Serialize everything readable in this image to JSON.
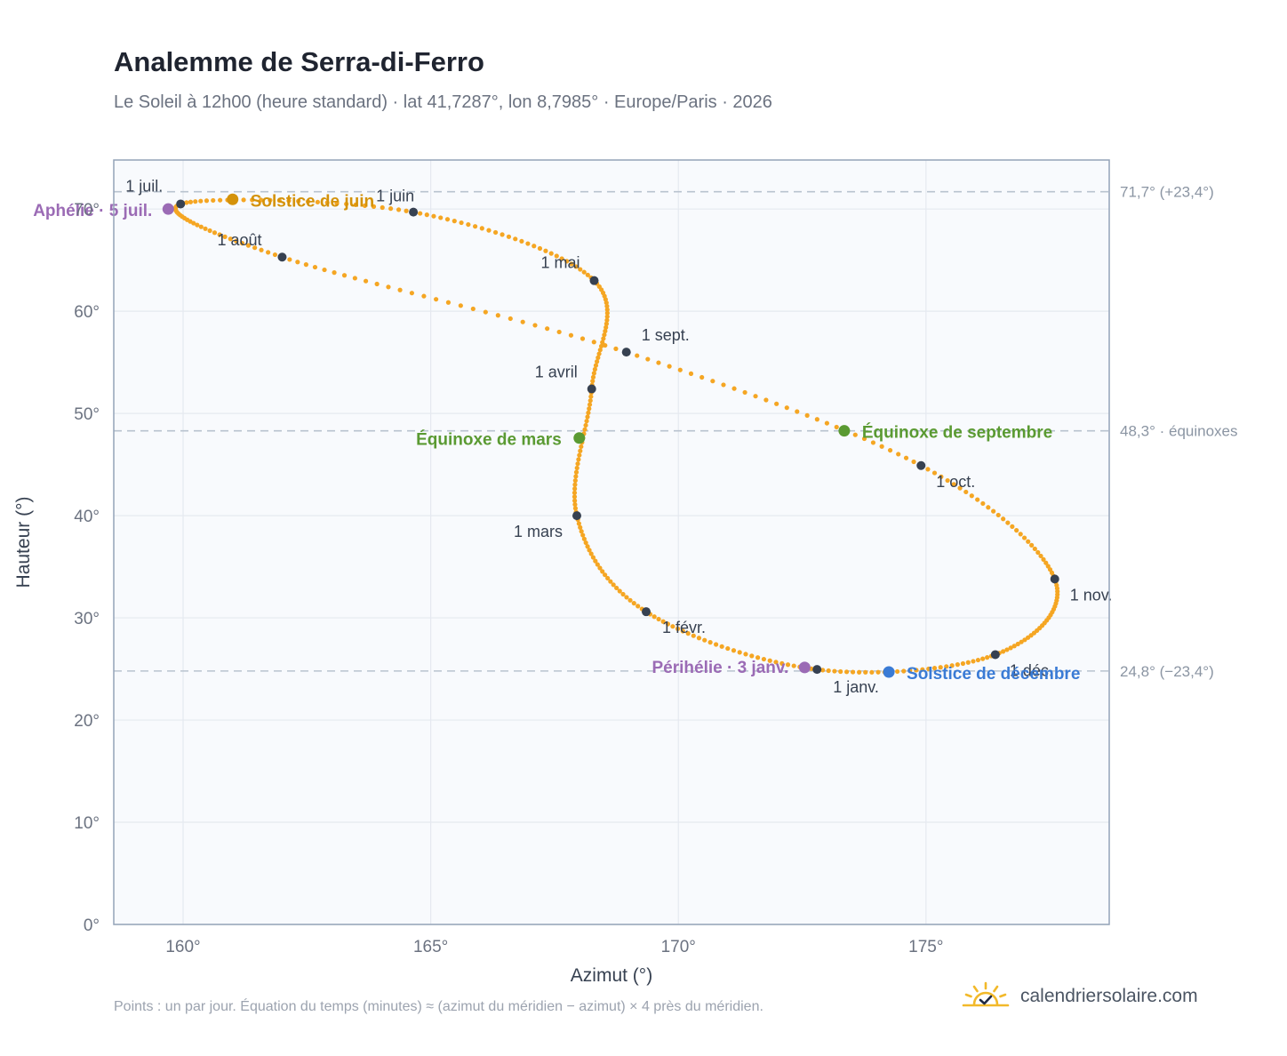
{
  "title": "Analemme de Serra-di-Ferro",
  "subtitle": "Le Soleil à 12h00 (heure standard) · lat 41,7287°, lon 8,7985° · Europe/Paris · 2026",
  "footnote": "Points : un par jour. Équation du temps (minutes) ≈ (azimut du méridien − azimut) × 4 près du méridien.",
  "brand": {
    "name": "calendriersolaire.com",
    "logo_icon": "sun-check-icon"
  },
  "colors": {
    "curve": "#f5a623",
    "month_marker": "#374151",
    "solstice_june": "#d4920a",
    "solstice_december": "#3a7bd5",
    "equinox": "#5a9a32",
    "apsis": "#9b6bb5",
    "reference_line": "#b9c3cf",
    "plot_background": "#f8fafd",
    "plot_border": "#94a3b8",
    "grid": "#e5e9f0"
  },
  "chart_data": {
    "type": "scatter",
    "title": "Analemme de Serra-di-Ferro",
    "xlabel": "Azimut (°)",
    "ylabel": "Hauteur (°)",
    "xlim": [
      158.6,
      178.7
    ],
    "ylim": [
      0,
      74.8
    ],
    "xticks": [
      160,
      165,
      170,
      175
    ],
    "yticks": [
      0,
      10,
      20,
      30,
      40,
      50,
      60,
      70
    ],
    "tick_labels": {
      "x": [
        "160°",
        "165°",
        "170°",
        "175°"
      ],
      "y": [
        "0°",
        "10°",
        "20°",
        "30°",
        "40°",
        "50°",
        "60°",
        "70°"
      ]
    },
    "grid": true,
    "curve_points": [
      {
        "label": "1 janv.",
        "x": 172.8,
        "y": 24.95
      },
      {
        "label": "1 févr.",
        "x": 169.35,
        "y": 30.6
      },
      {
        "label": "1 mars",
        "x": 167.95,
        "y": 40.0
      },
      {
        "label": "1 avril",
        "x": 168.25,
        "y": 52.4
      },
      {
        "label": "1 mai",
        "x": 168.3,
        "y": 63.0
      },
      {
        "label": "1 juin",
        "x": 164.65,
        "y": 69.7
      },
      {
        "label": "1 juil.",
        "x": 159.95,
        "y": 70.5
      },
      {
        "label": "1 août",
        "x": 162.0,
        "y": 65.3
      },
      {
        "label": "1 sept.",
        "x": 168.95,
        "y": 56.0
      },
      {
        "label": "1 oct.",
        "x": 174.9,
        "y": 44.9
      },
      {
        "label": "1 nov.",
        "x": 177.6,
        "y": 33.8
      },
      {
        "label": "1 déc.",
        "x": 176.4,
        "y": 26.4
      }
    ],
    "events": [
      {
        "label": "Solstice de juin",
        "x": 161.0,
        "y": 70.95,
        "color": "#d4920a"
      },
      {
        "label": "Aphélie · 5 juil.",
        "x": 159.7,
        "y": 70.0,
        "color": "#9b6bb5"
      },
      {
        "label": "Équinoxe de mars",
        "x": 168.0,
        "y": 47.6,
        "color": "#5a9a32"
      },
      {
        "label": "Équinoxe de septembre",
        "x": 173.35,
        "y": 48.3,
        "color": "#5a9a32"
      },
      {
        "label": "Périhélie · 3 janv.",
        "x": 172.55,
        "y": 25.15,
        "color": "#9b6bb5"
      },
      {
        "label": "Solstice de décembre",
        "x": 174.25,
        "y": 24.7,
        "color": "#3a7bd5"
      }
    ],
    "reference_lines": [
      {
        "y": 71.7,
        "label": "71,7° (+23,4°)"
      },
      {
        "y": 48.3,
        "label": "48,3° · équinoxes"
      },
      {
        "y": 24.8,
        "label": "24,8° (−23,4°)"
      }
    ]
  }
}
